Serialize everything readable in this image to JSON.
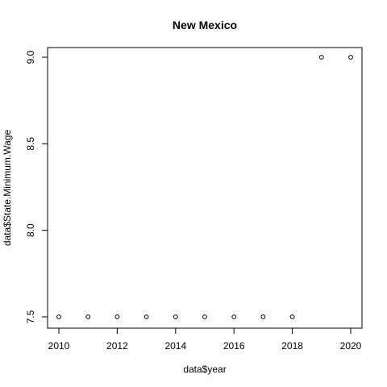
{
  "chart_data": {
    "type": "scatter",
    "title": "New Mexico",
    "xlabel": "data$year",
    "ylabel": "data$State.Minimum.Wage",
    "x": [
      2010,
      2011,
      2012,
      2013,
      2014,
      2015,
      2016,
      2017,
      2018,
      2019,
      2020
    ],
    "y": [
      7.5,
      7.5,
      7.5,
      7.5,
      7.5,
      7.5,
      7.5,
      7.5,
      7.5,
      9.0,
      9.0
    ],
    "xlim": [
      2010,
      2020
    ],
    "ylim": [
      7.5,
      9.0
    ],
    "x_ticks": [
      2010,
      2012,
      2014,
      2016,
      2018,
      2020
    ],
    "x_tick_labels": [
      "2010",
      "2012",
      "2014",
      "2016",
      "2018",
      "2020"
    ],
    "y_ticks": [
      7.5,
      8.0,
      8.5,
      9.0
    ],
    "y_tick_labels": [
      "7.5",
      "8.0",
      "8.5",
      "9.0"
    ],
    "grid": false,
    "legend": "none",
    "marker": "open-circle",
    "colors": {
      "marker": "#000000",
      "axis": "#000000",
      "background": "#ffffff"
    }
  }
}
